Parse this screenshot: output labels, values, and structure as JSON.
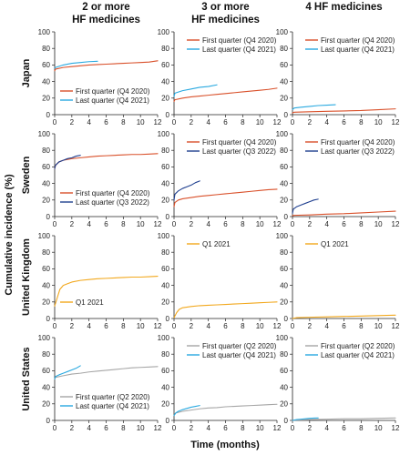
{
  "chart_data": {
    "type": "line",
    "ylabel": "Cumulative incidence (%)",
    "xlabel": "Time (months)",
    "columns": [
      "2 or more\nHF medicines",
      "3 or more\nHF medicines",
      "4 HF medicines"
    ],
    "rows": [
      "Japan",
      "Sweden",
      "United Kingdom",
      "United States"
    ],
    "xlim": [
      0,
      12
    ],
    "ylim": [
      0,
      100
    ],
    "xticks": [
      "0",
      "2",
      "4",
      "6",
      "8",
      "10",
      "12"
    ],
    "yticks": [
      "0",
      "20",
      "40",
      "60",
      "80",
      "100"
    ],
    "colors": {
      "first": "#d9502a",
      "last_blue": "#29a9e0",
      "last_navy": "#1f3f8f",
      "uk": "#f2a81d",
      "us_first": "#a6a6a6"
    },
    "panels": [
      {
        "row": 0,
        "col": 0,
        "legend_position": "bottom-left",
        "series": [
          {
            "name": "First quarter (Q4 2020)",
            "color": "#d9502a",
            "x": [
              0,
              0.1,
              1,
              2,
              3,
              4,
              5,
              6,
              7,
              8,
              9,
              10,
              11,
              12
            ],
            "y": [
              53,
              55,
              57,
              58,
              59,
              60,
              60.5,
              61,
              61.5,
              62,
              62.5,
              63,
              63.5,
              65
            ]
          },
          {
            "name": "Last quarter (Q4 2021)",
            "color": "#29a9e0",
            "x": [
              0,
              0.1,
              1,
              2,
              3,
              4,
              5
            ],
            "y": [
              56,
              57,
              60,
              62,
              63,
              64,
              64.5
            ]
          }
        ]
      },
      {
        "row": 0,
        "col": 1,
        "legend_position": "top-right",
        "series": [
          {
            "name": "First quarter (Q4 2020)",
            "color": "#d9502a",
            "x": [
              0,
              0.1,
              1,
              2,
              3,
              4,
              5,
              6,
              7,
              8,
              9,
              10,
              11,
              12
            ],
            "y": [
              16,
              18,
              20,
              21.5,
              22.5,
              23.5,
              24.5,
              25.5,
              26.5,
              27.5,
              28.5,
              29.5,
              30.5,
              32
            ]
          },
          {
            "name": "Last quarter (Q4 2021)",
            "color": "#29a9e0",
            "x": [
              0,
              0.1,
              1,
              2,
              3,
              4,
              5
            ],
            "y": [
              22,
              26,
              29,
              31,
              33,
              34,
              36
            ]
          }
        ]
      },
      {
        "row": 0,
        "col": 2,
        "legend_position": "top-right",
        "series": [
          {
            "name": "First quarter (Q4 2020)",
            "color": "#d9502a",
            "x": [
              0,
              0.2,
              2,
              4,
              6,
              8,
              10,
              12
            ],
            "y": [
              2,
              3,
              3.5,
              4,
              4.5,
              5,
              6,
              7
            ]
          },
          {
            "name": "Last quarter (Q4 2021)",
            "color": "#29a9e0",
            "x": [
              0,
              0.2,
              1,
              2,
              3,
              4,
              5
            ],
            "y": [
              6,
              8,
              9,
              10,
              11,
              11.5,
              12
            ]
          }
        ]
      },
      {
        "row": 1,
        "col": 0,
        "legend_position": "bottom-left",
        "series": [
          {
            "name": "First quarter (Q4 2020)",
            "color": "#d9502a",
            "x": [
              0,
              0.1,
              0.5,
              1,
              2,
              3,
              4,
              5,
              6,
              7,
              8,
              9,
              10,
              11,
              12
            ],
            "y": [
              58,
              62,
              66,
              68,
              70,
              71,
              72,
              73,
              73.5,
              74,
              74.5,
              75,
              75,
              75.5,
              76
            ]
          },
          {
            "name": "Last quarter (Q3 2022)",
            "color": "#1f3f8f",
            "x": [
              0,
              0.1,
              0.5,
              1,
              1.5,
              2,
              2.5,
              3
            ],
            "y": [
              58,
              62,
              66,
              68,
              70,
              71,
              73,
              74
            ]
          }
        ]
      },
      {
        "row": 1,
        "col": 1,
        "legend_position": "top-right",
        "series": [
          {
            "name": "First quarter (Q4 2020)",
            "color": "#d9502a",
            "x": [
              0,
              0.1,
              0.5,
              1,
              2,
              3,
              4,
              5,
              6,
              7,
              8,
              9,
              10,
              11,
              12
            ],
            "y": [
              12,
              17,
              20,
              21.5,
              23,
              24.5,
              25.5,
              26.5,
              27.5,
              28.5,
              29.5,
              30.5,
              31.5,
              32.5,
              33
            ]
          },
          {
            "name": "Last quarter (Q3 2022)",
            "color": "#1f3f8f",
            "x": [
              0,
              0.1,
              0.5,
              1,
              1.5,
              2,
              2.5,
              3
            ],
            "y": [
              20,
              27,
              31,
              34,
              36,
              38,
              41,
              43
            ]
          }
        ]
      },
      {
        "row": 1,
        "col": 2,
        "legend_position": "top-right",
        "series": [
          {
            "name": "First quarter (Q4 2020)",
            "color": "#d9502a",
            "x": [
              0,
              0.2,
              2,
              4,
              6,
              8,
              10,
              12
            ],
            "y": [
              1,
              1.5,
              2,
              3,
              3.5,
              4.5,
              5.5,
              6.5
            ]
          },
          {
            "name": "Last quarter (Q3 2022)",
            "color": "#1f3f8f",
            "x": [
              0,
              0.1,
              0.5,
              1,
              1.5,
              2,
              2.5,
              3
            ],
            "y": [
              4,
              9,
              12,
              14,
              16,
              18,
              20,
              21
            ]
          }
        ]
      },
      {
        "row": 2,
        "col": 0,
        "legend_position": "bottom-left",
        "series": [
          {
            "name": "Q1 2021",
            "color": "#f2a81d",
            "x": [
              0,
              0.3,
              0.6,
              1,
              1.5,
              2,
              3,
              4,
              5,
              6,
              7,
              8,
              9,
              10,
              11,
              12
            ],
            "y": [
              15,
              25,
              35,
              40,
              42,
              44,
              46,
              47,
              48,
              48.5,
              49,
              49.5,
              50,
              50,
              50.5,
              51
            ]
          }
        ]
      },
      {
        "row": 2,
        "col": 1,
        "legend_position": "top-left",
        "series": [
          {
            "name": "Q1 2021",
            "color": "#f2a81d",
            "x": [
              0,
              0.3,
              0.6,
              1,
              2,
              3,
              4,
              5,
              6,
              7,
              8,
              9,
              10,
              11,
              12
            ],
            "y": [
              1,
              7,
              11,
              13,
              14.5,
              15.5,
              16,
              16.5,
              17,
              17.5,
              18,
              18.5,
              19,
              19.5,
              20
            ]
          }
        ]
      },
      {
        "row": 2,
        "col": 2,
        "legend_position": "top-left",
        "series": [
          {
            "name": "Q1 2021",
            "color": "#f2a81d",
            "x": [
              0,
              0.5,
              2,
              4,
              6,
              8,
              10,
              12
            ],
            "y": [
              0,
              1,
              1.5,
              2,
              2.5,
              3,
              3.5,
              4
            ]
          }
        ]
      },
      {
        "row": 3,
        "col": 0,
        "legend_position": "bottom-left",
        "series": [
          {
            "name": "First quarter (Q2 2020)",
            "color": "#a6a6a6",
            "x": [
              0,
              0.1,
              1,
              2,
              3,
              4,
              5,
              6,
              7,
              8,
              9,
              10,
              11,
              12
            ],
            "y": [
              50,
              52,
              54,
              56,
              57,
              58.5,
              59.5,
              60.5,
              61.5,
              62.5,
              63.5,
              64,
              64.5,
              65
            ]
          },
          {
            "name": "Last quarter (Q4 2021)",
            "color": "#29a9e0",
            "x": [
              0,
              0.1,
              0.5,
              1,
              1.5,
              2,
              2.5,
              3
            ],
            "y": [
              50,
              53,
              55,
              57,
              59,
              61,
              63,
              66
            ]
          }
        ]
      },
      {
        "row": 3,
        "col": 1,
        "legend_position": "top-right",
        "series": [
          {
            "name": "First quarter (Q2 2020)",
            "color": "#a6a6a6",
            "x": [
              0,
              0.2,
              1,
              2,
              3,
              4,
              5,
              6,
              7,
              8,
              9,
              10,
              11,
              12
            ],
            "y": [
              6,
              9,
              11,
              12.5,
              14,
              15,
              15.5,
              16.5,
              17,
              17.5,
              18,
              18.5,
              19,
              19.5
            ]
          },
          {
            "name": "Last quarter (Q4 2021)",
            "color": "#29a9e0",
            "x": [
              0,
              0.2,
              0.5,
              1,
              1.5,
              2,
              2.5,
              3
            ],
            "y": [
              6,
              9,
              11,
              13,
              14.5,
              16,
              17,
              18
            ]
          }
        ]
      },
      {
        "row": 3,
        "col": 2,
        "legend_position": "top-right",
        "series": [
          {
            "name": "First quarter (Q2 2020)",
            "color": "#a6a6a6",
            "x": [
              0,
              0.5,
              2,
              4,
              6,
              8,
              10,
              12
            ],
            "y": [
              0,
              0.5,
              1,
              1.5,
              2,
              2,
              2.5,
              3
            ]
          },
          {
            "name": "Last quarter (Q4 2021)",
            "color": "#29a9e0",
            "x": [
              0,
              0.5,
              1,
              1.5,
              2,
              2.5,
              3
            ],
            "y": [
              0,
              1,
              1.5,
              2,
              2.5,
              2.8,
              3
            ]
          }
        ]
      }
    ]
  }
}
